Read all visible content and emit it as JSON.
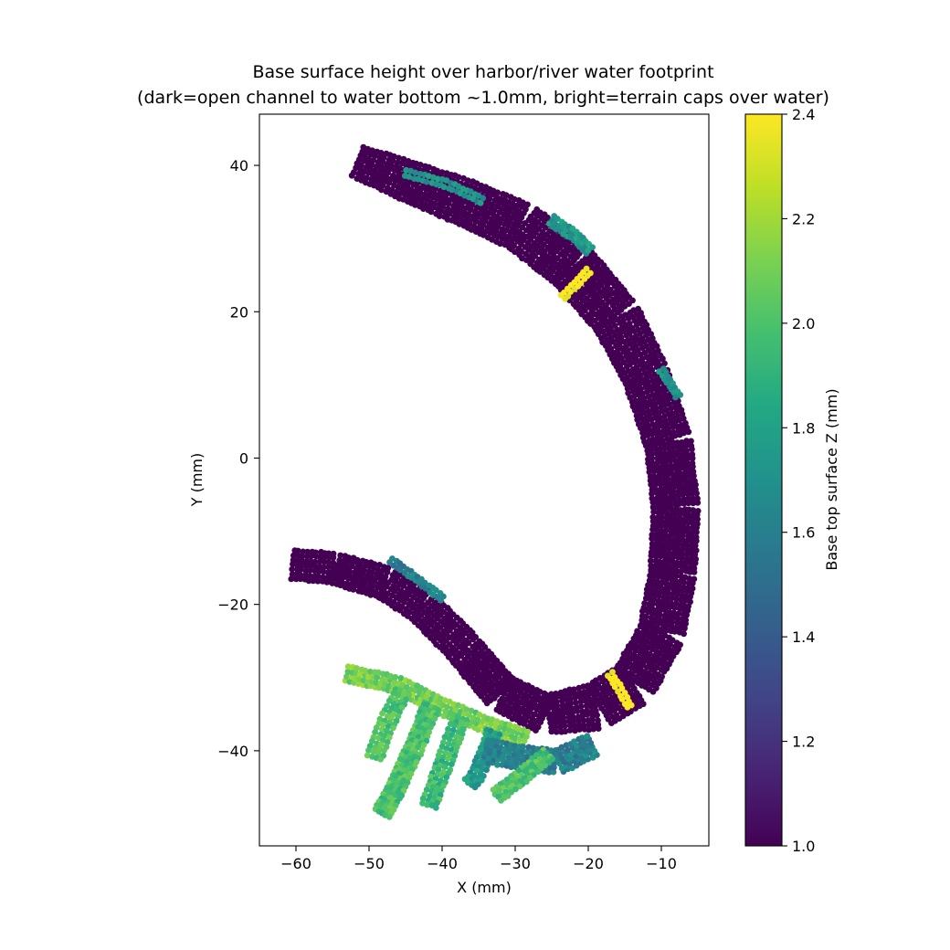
{
  "chart_data": {
    "type": "scatter",
    "title": "Base surface height over harbor/river water footprint",
    "subtitle": "(dark=open channel to water bottom ~1.0mm, bright=terrain caps over water)",
    "xlabel": "X (mm)",
    "ylabel": "Y (mm)",
    "xlim": [
      -65,
      -3.5
    ],
    "ylim": [
      -53,
      47
    ],
    "xticks": [
      -60,
      -50,
      -40,
      -30,
      -20,
      -10
    ],
    "yticks": [
      -40,
      -20,
      0,
      20,
      40
    ],
    "xtick_labels": [
      "−60",
      "−50",
      "−40",
      "−30",
      "−20",
      "−10"
    ],
    "ytick_labels": [
      "−40",
      "−20",
      "0",
      "20",
      "40"
    ],
    "grid": false,
    "colorbar": {
      "label": "Base top surface Z (mm)",
      "colormap": "viridis",
      "range": [
        1.0,
        2.4
      ],
      "ticks": [
        1.0,
        1.2,
        1.4,
        1.6,
        1.8,
        2.0,
        2.2,
        2.4
      ],
      "tick_labels": [
        "1.0",
        "1.2",
        "1.4",
        "1.6",
        "1.8",
        "2.0",
        "2.2",
        "2.4"
      ]
    },
    "regions": [
      {
        "role": "river channel",
        "z": 1.0,
        "spine": [
          [
            -51.5,
            40.5
          ],
          [
            -45,
            38
          ],
          [
            -37,
            35
          ],
          [
            -29,
            31.5
          ],
          [
            -22,
            26
          ],
          [
            -16,
            19
          ],
          [
            -12,
            11
          ],
          [
            -9,
            2
          ],
          [
            -8,
            -7
          ],
          [
            -8.5,
            -16
          ],
          [
            -10,
            -24
          ],
          [
            -14,
            -31
          ],
          [
            -19,
            -34
          ],
          [
            -26,
            -35
          ],
          [
            -32,
            -32
          ],
          [
            -37,
            -26
          ],
          [
            -43,
            -20
          ],
          [
            -48,
            -17
          ],
          [
            -55,
            -15
          ],
          [
            -61,
            -14.5
          ]
        ],
        "half_width": [
          2.1,
          2.6,
          3.0,
          3.2,
          3.3,
          3.2,
          3.0,
          3.0,
          3.0,
          3.0,
          3.0,
          3.0,
          3.0,
          2.5,
          2.4,
          2.3,
          2.2,
          2.1,
          2.0,
          1.9
        ]
      },
      {
        "role": "bank caps",
        "z": 1.7,
        "spine": [
          [
            -45,
            39
          ],
          [
            -39.5,
            37.5
          ],
          [
            -34,
            35
          ]
        ],
        "half_width": 0.4
      },
      {
        "role": "bank caps",
        "z": 1.75,
        "spine": [
          [
            -25,
            32.5
          ],
          [
            -22,
            30.5
          ],
          [
            -19.5,
            28
          ]
        ],
        "half_width": 0.6
      },
      {
        "role": "bank caps",
        "z": 1.7,
        "spine": [
          [
            -10,
            12
          ],
          [
            -8,
            9
          ],
          [
            -7.5,
            8
          ]
        ],
        "half_width": 0.3
      },
      {
        "role": "bank caps",
        "z": 1.6,
        "spine": [
          [
            -47,
            -14
          ],
          [
            -43.5,
            -16.5
          ],
          [
            -39.5,
            -19.5
          ]
        ],
        "half_width": 0.35
      },
      {
        "role": "crossing",
        "z": 2.4,
        "spine": [
          [
            -23.5,
            22
          ],
          [
            -19.5,
            26
          ]
        ],
        "half_width": 0.35
      },
      {
        "role": "crossing",
        "z": 2.4,
        "spine": [
          [
            -17,
            -29.5
          ],
          [
            -14,
            -34.5
          ]
        ],
        "half_width": 0.35
      },
      {
        "role": "harbor inlet",
        "z": 2.1,
        "spine": [
          [
            -53,
            -29.5
          ],
          [
            -46,
            -31
          ],
          [
            -40,
            -34
          ],
          [
            -34,
            -36.5
          ],
          [
            -28,
            -38.5
          ]
        ],
        "half_width": 1.0
      },
      {
        "role": "harbor inlet",
        "z": 2.0,
        "spine": [
          [
            -45.5,
            -32
          ],
          [
            -47.5,
            -36
          ],
          [
            -49.5,
            -41.5
          ]
        ],
        "half_width": 1.0
      },
      {
        "role": "harbor inlet",
        "z": 2.0,
        "spine": [
          [
            -41.5,
            -34
          ],
          [
            -44,
            -40
          ],
          [
            -46.5,
            -45.5
          ],
          [
            -48.5,
            -49
          ]
        ],
        "half_width": 1.1
      },
      {
        "role": "harbor inlet",
        "z": 1.95,
        "spine": [
          [
            -37.5,
            -35.5
          ],
          [
            -39.5,
            -41
          ],
          [
            -42,
            -48
          ]
        ],
        "half_width": 1.0
      },
      {
        "role": "harbor inlet",
        "z": 1.75,
        "spine": [
          [
            -33,
            -37.5
          ],
          [
            -35,
            -43
          ],
          [
            -36.5,
            -45
          ]
        ],
        "half_width": 0.9
      },
      {
        "role": "harbor inlet",
        "z": 1.6,
        "spine": [
          [
            -34,
            -40
          ],
          [
            -29,
            -41
          ],
          [
            -24,
            -41.5
          ],
          [
            -19,
            -39
          ]
        ],
        "half_width": 1.5
      },
      {
        "role": "harbor inlet",
        "z": 2.0,
        "spine": [
          [
            -25.5,
            -40.5
          ],
          [
            -29,
            -43.5
          ],
          [
            -33,
            -46.5
          ]
        ],
        "half_width": 0.9
      }
    ]
  }
}
